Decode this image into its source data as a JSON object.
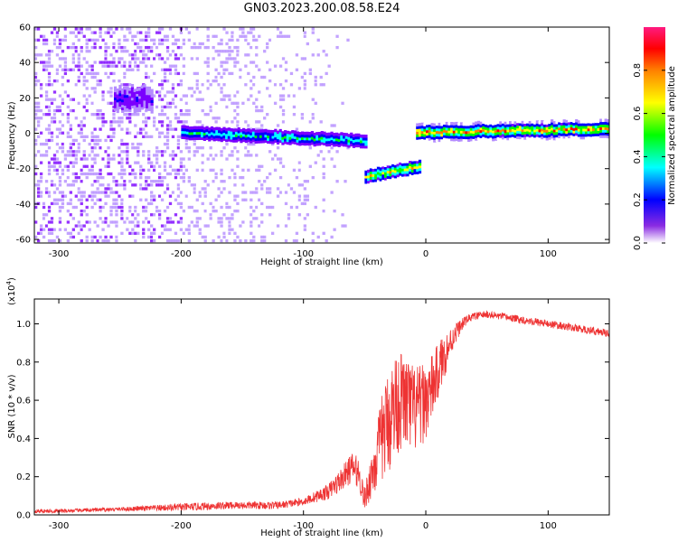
{
  "title": "GN03.2023.200.08.58.E24",
  "chart_data": [
    {
      "type": "heatmap",
      "xlabel": "Height of straight line (km)",
      "ylabel": "Frequency (Hz)",
      "xlim": [
        -320,
        150
      ],
      "ylim": [
        -62,
        60
      ],
      "xticks": [
        -300,
        -200,
        -100,
        0,
        100
      ],
      "yticks": [
        60,
        40,
        20,
        0,
        -20,
        -40,
        -60
      ],
      "colorbar": {
        "label": "Normalized spectral amplitude",
        "range": [
          0.0,
          1.0
        ],
        "ticks": [
          "0.0",
          "0.2",
          "0.4",
          "0.6",
          "0.8"
        ],
        "colormap": [
          "#ffffff",
          "#7b00ff",
          "#0000ff",
          "#00ffff",
          "#00ff00",
          "#ffff00",
          "#ff8000",
          "#ff0000",
          "#ff0080"
        ]
      },
      "features": [
        {
          "name": "broadband noise",
          "x_range": [
            -320,
            -100
          ],
          "frequency_range": [
            -62,
            60
          ],
          "amplitude": 0.1
        },
        {
          "name": "blob",
          "x_range": [
            -255,
            -225
          ],
          "frequency": 19,
          "amplitude": 0.25
        },
        {
          "name": "tone 1",
          "x_range": [
            -200,
            -50
          ],
          "frequency": [
            0,
            -5
          ],
          "amplitude": 0.5
        },
        {
          "name": "tone 2",
          "x_range": [
            -50,
            -5
          ],
          "frequency": [
            -25,
            -19
          ],
          "amplitude": 0.7
        },
        {
          "name": "tone 3",
          "x_range": [
            -8,
            150
          ],
          "frequency": [
            0,
            2
          ],
          "amplitude": 0.8
        }
      ]
    },
    {
      "type": "line",
      "xlabel": "Height of straight line (km)",
      "ylabel": "SNR (10 * v/v)",
      "y_scale_label": "(x10",
      "y_scale_exp": "4",
      "y_scale_close": ")",
      "xlim": [
        -320,
        150
      ],
      "ylim": [
        0,
        1.13
      ],
      "xticks": [
        -300,
        -200,
        -100,
        0,
        100
      ],
      "yticks": [
        "0.0",
        "0.2",
        "0.4",
        "0.6",
        "0.8",
        "1.0"
      ],
      "color": "#ee3333",
      "series": [
        {
          "x": [
            -320,
            -300,
            -250,
            -200,
            -160,
            -120,
            -100,
            -80,
            -70,
            -60,
            -55,
            -50,
            -45,
            -40,
            -35,
            -30,
            -25,
            -20,
            -15,
            -10,
            -5,
            0,
            5,
            10,
            15,
            20,
            25,
            30,
            35,
            40,
            50,
            60,
            70,
            80,
            90,
            100,
            110,
            120,
            130,
            140,
            150
          ],
          "y": [
            0.02,
            0.02,
            0.03,
            0.04,
            0.05,
            0.05,
            0.07,
            0.12,
            0.18,
            0.25,
            0.22,
            0.08,
            0.2,
            0.3,
            0.42,
            0.5,
            0.58,
            0.6,
            0.58,
            0.55,
            0.56,
            0.6,
            0.66,
            0.75,
            0.83,
            0.9,
            0.96,
            1.0,
            1.03,
            1.04,
            1.05,
            1.04,
            1.03,
            1.02,
            1.01,
            1.0,
            0.99,
            0.98,
            0.97,
            0.96,
            0.95
          ],
          "noise": [
            0.01,
            0.01,
            0.01,
            0.02,
            0.02,
            0.02,
            0.02,
            0.04,
            0.06,
            0.08,
            0.08,
            0.06,
            0.12,
            0.18,
            0.24,
            0.28,
            0.28,
            0.26,
            0.25,
            0.24,
            0.22,
            0.2,
            0.18,
            0.15,
            0.12,
            0.08,
            0.05,
            0.03,
            0.02,
            0.02,
            0.02,
            0.02,
            0.02,
            0.02,
            0.02,
            0.02,
            0.02,
            0.02,
            0.02,
            0.02,
            0.02
          ]
        }
      ]
    }
  ]
}
